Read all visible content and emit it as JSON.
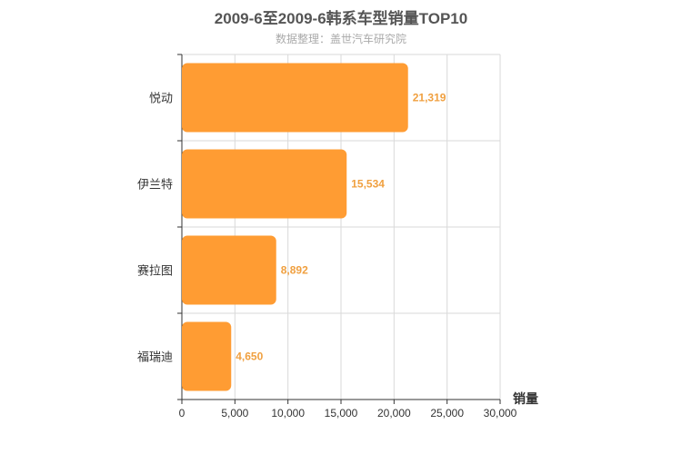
{
  "title": "2009-6至2009-6韩系车型销量TOP10",
  "subtitle": "数据整理：盖世汽车研究院",
  "colors": {
    "bar": "#ff9c33",
    "value_label": "#f0a040"
  },
  "chart_data": {
    "type": "bar",
    "orientation": "horizontal",
    "title": "2009-6至2009-6韩系车型销量TOP10",
    "subtitle": "数据整理：盖世汽车研究院",
    "categories": [
      "悦动",
      "伊兰特",
      "赛拉图",
      "福瑞迪"
    ],
    "values": [
      21319,
      15534,
      8892,
      4650
    ],
    "value_labels": [
      "21,319",
      "15,534",
      "8,892",
      "4,650"
    ],
    "xlabel": "销量",
    "ylabel": "",
    "xlim": [
      0,
      30000
    ],
    "x_ticks": [
      0,
      5000,
      10000,
      15000,
      20000,
      25000,
      30000
    ],
    "x_tick_labels": [
      "0",
      "5,000",
      "10,000",
      "15,000",
      "20,000",
      "25,000",
      "30,000"
    ],
    "grid": true
  }
}
